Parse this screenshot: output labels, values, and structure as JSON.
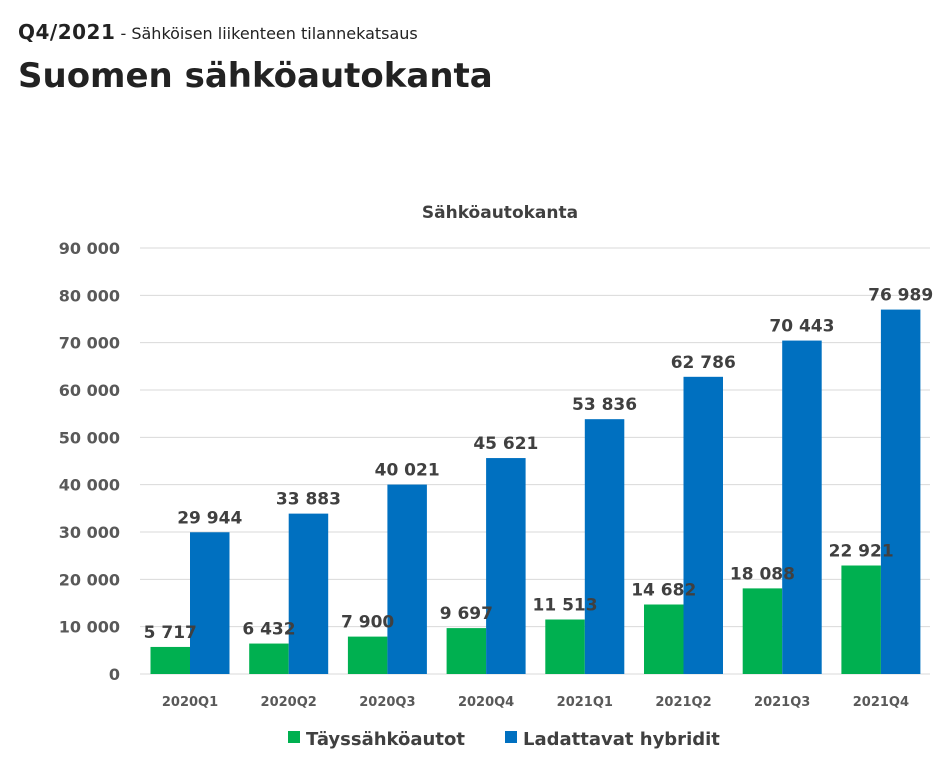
{
  "header": {
    "period": "Q4/2021",
    "subtitle": "- Sähköisen liikenteen tilannekatsaus"
  },
  "page_title": "Suomen sähköautokanta",
  "chart_data": {
    "type": "bar",
    "title": "Sähköautokanta",
    "categories": [
      "2020Q1",
      "2020Q2",
      "2020Q3",
      "2020Q4",
      "2021Q1",
      "2021Q2",
      "2021Q3",
      "2021Q4"
    ],
    "series": [
      {
        "name": "Täyssähköautot",
        "color": "#00b050",
        "values": [
          5717,
          6432,
          7900,
          9697,
          11513,
          14682,
          18088,
          22921
        ],
        "labels": [
          "5 717",
          "6 432",
          "7 900",
          "9 697",
          "11 513",
          "14 682",
          "18 088",
          "22 921"
        ]
      },
      {
        "name": "Ladattavat hybridit",
        "color": "#0070c0",
        "values": [
          29944,
          33883,
          40021,
          45621,
          53836,
          62786,
          70443,
          76989
        ],
        "labels": [
          "29 944",
          "33 883",
          "40 021",
          "45 621",
          "53 836",
          "62 786",
          "70 443",
          "76 989"
        ]
      }
    ],
    "ylim": [
      0,
      90000
    ],
    "yticks": [
      "0",
      "10 000",
      "20 000",
      "30 000",
      "40 000",
      "50 000",
      "60 000",
      "70 000",
      "80 000",
      "90 000"
    ],
    "grid": true,
    "legend": "bottom"
  }
}
